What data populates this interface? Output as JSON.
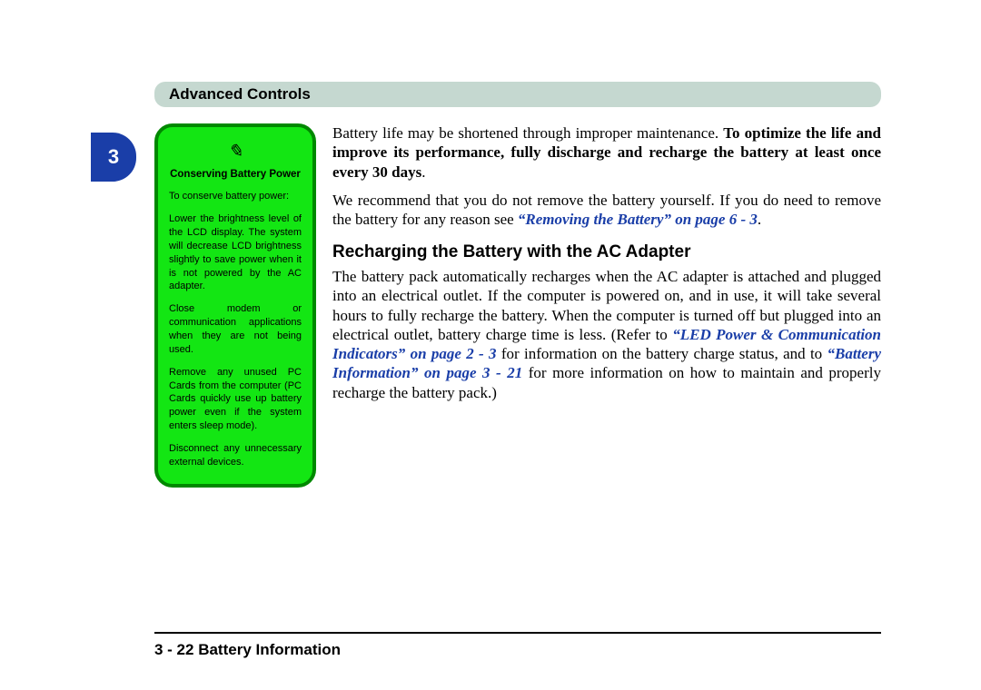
{
  "header": {
    "title": "Advanced Controls",
    "background_color": "#c5d8d0"
  },
  "chapter_tab": {
    "number": "3",
    "background_color": "#1a3ea8"
  },
  "sidebar_note": {
    "icon": "✎",
    "title": "Conserving Battery Power",
    "background_color": "#13e613",
    "border_color": "#008800",
    "paragraphs": [
      "To conserve battery power:",
      "Lower the brightness level of the LCD display. The system will decrease LCD brightness slightly to save power when it is not powered by the AC adapter.",
      "Close modem or communication applications when they are not being used.",
      "Remove any unused PC Cards from the computer (PC Cards quickly use up battery power even if the system enters sleep mode).",
      "Disconnect any unnecessary external devices."
    ]
  },
  "body": {
    "p1": {
      "lead": "Battery life may be shortened through improper maintenance. ",
      "bold": "To optimize the life and improve its performance, fully discharge and recharge the battery at least once every 30 days",
      "tail": "."
    },
    "p2": {
      "lead": "We recommend that you do not remove the battery yourself. If you do need to remove the battery for any reason see ",
      "xref": "“Removing the Battery” on page 6 - 3",
      "tail": "."
    },
    "subheading": "Recharging the Battery with the AC Adapter",
    "p3": {
      "lead": "The battery pack automatically recharges when the AC adapter is attached and plugged into an electrical outlet. If the computer is powered on, and in use, it will take several hours to fully recharge the battery. When the computer is turned off but plugged into an electrical outlet, battery charge time is less. (Refer to ",
      "xref1": "“LED Power & Communication Indicators” on page 2 - 3",
      "mid": " for information on the battery charge status, and to ",
      "xref2": "“Battery Information” on page 3 - 21",
      "tail": " for more information on how to maintain and properly recharge the battery pack.)"
    },
    "xref_color": "#1a3ea8"
  },
  "footer": {
    "text": "3 - 22  Battery Information"
  }
}
